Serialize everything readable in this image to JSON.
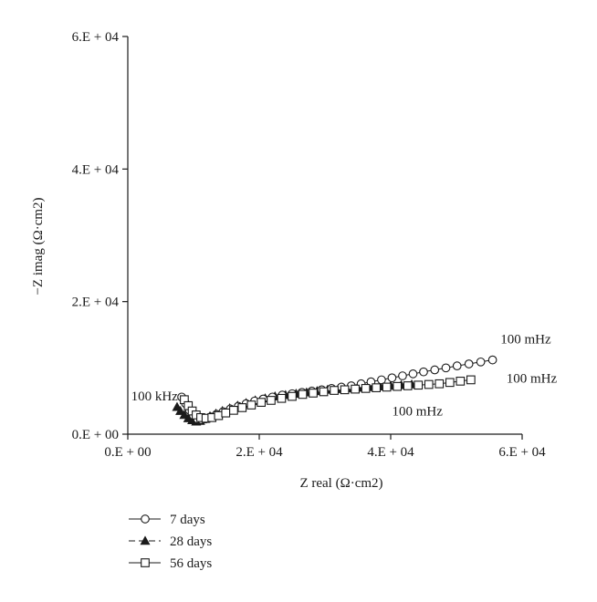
{
  "chart_data": {
    "type": "scatter",
    "title": "",
    "xlabel": "Z real (Ω·cm2)",
    "ylabel": "−Z imag (Ω·cm2)",
    "xlim": [
      0,
      60000
    ],
    "ylim": [
      0,
      60000
    ],
    "xticks": [
      0,
      20000,
      40000,
      60000
    ],
    "yticks": [
      0,
      20000,
      40000,
      60000
    ],
    "xtick_labels": [
      "0.E + 00",
      "2.E + 04",
      "4.E + 04",
      "6.E + 04"
    ],
    "ytick_labels": [
      "0.E + 00",
      "2.E + 04",
      "4.E + 04",
      "6.E + 04"
    ],
    "grid": false,
    "legend_position": "bottom-left",
    "series": [
      {
        "name": "7 days",
        "marker": "open-circle",
        "x": [
          8200,
          8800,
          9400,
          10000,
          10600,
          11200,
          11800,
          12600,
          13500,
          14500,
          15600,
          16800,
          18000,
          19300,
          20600,
          22000,
          23500,
          25000,
          26500,
          28000,
          29500,
          31000,
          32500,
          34000,
          35500,
          37000,
          38600,
          40200,
          41800,
          43400,
          45000,
          46700,
          48400,
          50100,
          51900,
          53700,
          55500
        ],
        "y": [
          5600,
          4600,
          3600,
          2800,
          2300,
          2200,
          2300,
          2600,
          3000,
          3400,
          3800,
          4200,
          4600,
          5000,
          5300,
          5600,
          5900,
          6100,
          6300,
          6500,
          6700,
          6900,
          7100,
          7300,
          7600,
          7900,
          8200,
          8500,
          8800,
          9100,
          9400,
          9700,
          10000,
          10300,
          10600,
          10900,
          11200
        ]
      },
      {
        "name": "28 days",
        "marker": "filled-triangle",
        "x": [
          7500,
          8000,
          8600,
          9200,
          9800,
          10400,
          11000,
          11700,
          12500,
          13400,
          14400,
          15500,
          16700,
          18000,
          19400,
          20900,
          22400,
          24000,
          25600,
          27200,
          28800,
          30400,
          32000,
          33600,
          35200,
          36800,
          38400,
          40000,
          41600,
          43200
        ],
        "y": [
          4100,
          3500,
          2900,
          2400,
          2100,
          1900,
          2000,
          2300,
          2700,
          3100,
          3500,
          3900,
          4300,
          4700,
          5100,
          5400,
          5700,
          5900,
          6100,
          6300,
          6500,
          6700,
          6800,
          6900,
          7000,
          7100,
          7200,
          7300,
          7400,
          7500
        ]
      },
      {
        "name": "56 days",
        "marker": "open-square",
        "x": [
          8600,
          9200,
          9800,
          10400,
          11100,
          11900,
          12800,
          13800,
          14900,
          16100,
          17400,
          18800,
          20300,
          21800,
          23400,
          25000,
          26600,
          28200,
          29800,
          31400,
          33000,
          34600,
          36200,
          37800,
          39400,
          41000,
          42600,
          44200,
          45800,
          47400,
          49000,
          50600,
          52200
        ],
        "y": [
          5200,
          4300,
          3500,
          2900,
          2500,
          2400,
          2500,
          2800,
          3200,
          3600,
          4000,
          4400,
          4800,
          5100,
          5400,
          5700,
          6000,
          6200,
          6400,
          6600,
          6700,
          6800,
          6900,
          7000,
          7100,
          7200,
          7300,
          7400,
          7500,
          7600,
          7800,
          8000,
          8200
        ]
      }
    ],
    "annotations": [
      {
        "text": "100 kHz",
        "x": 500,
        "y": 5100
      },
      {
        "text": "100 mHz",
        "x": 56700,
        "y": 13700
      },
      {
        "text": "100 mHz",
        "x": 57600,
        "y": 7800
      },
      {
        "text": "100 mHz",
        "x": 40200,
        "y": 2800
      }
    ]
  }
}
